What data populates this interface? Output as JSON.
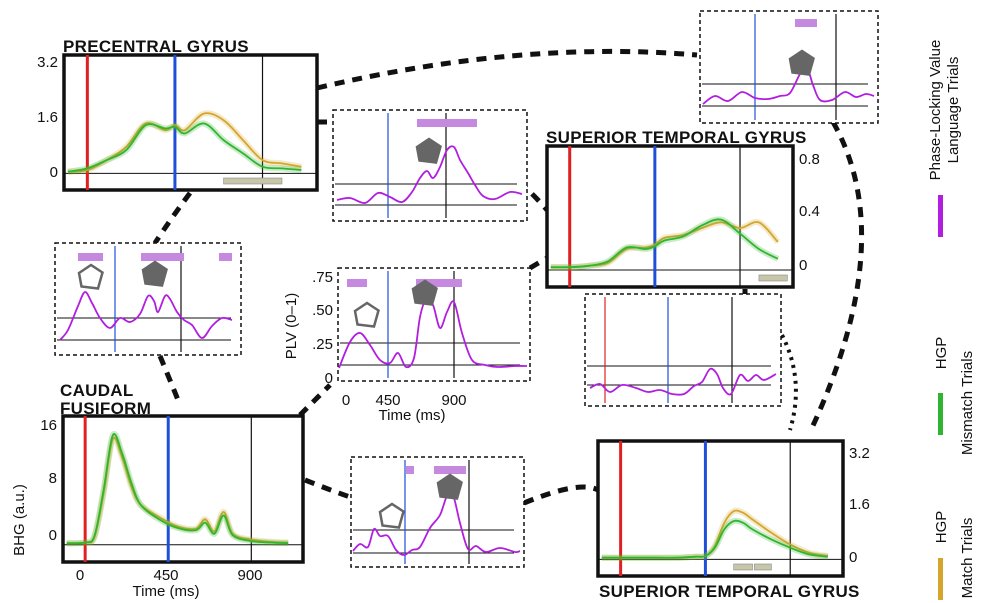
{
  "colors": {
    "match": "#d4a72c",
    "mismatch": "#2fb52f",
    "plv": "#b11ee0",
    "plv_bar": "#c58ae0",
    "sig_bar": "#c8c6a9",
    "marker_red": "#e02020",
    "marker_blue": "#1f4fd8",
    "arrow_fill": "#666666"
  },
  "labels": {
    "precentral": "PRECENTRAL GYRUS",
    "stg_upper": "SUPERIOR TEMPORAL GYRUS",
    "caudal": "CAUDAL",
    "fusiform": "FUSIFORM",
    "stg_lower": "SUPERIOR TEMPORAL GYRUS",
    "bhg_axis": "BHG (a.u.)",
    "plv_axis": "PLV (0–1)",
    "time_axis": "Time (ms)"
  },
  "legend": {
    "plv_line1": "Phase-Locking Value",
    "plv_line2": "Language Trials",
    "mismatch_line1": "HGP",
    "mismatch_line2": "Mismatch Trials",
    "match_line1": "HGP",
    "match_line2": "Match Trials"
  },
  "chart_data": [
    {
      "id": "precentral",
      "type": "line",
      "ylabel": "",
      "ylim": [
        -0.2,
        3.2
      ],
      "yticks": [
        "3.2",
        "1.6",
        "0"
      ],
      "x": [
        -100,
        0,
        100,
        200,
        300,
        400,
        450,
        500,
        600,
        700,
        800,
        900,
        1000,
        1100
      ],
      "series": [
        {
          "name": "",
          "key": "match",
          "values": [
            0.05,
            0.1,
            0.4,
            0.8,
            1.5,
            1.3,
            1.45,
            1.3,
            1.8,
            1.6,
            1.0,
            0.4,
            0.3,
            0.2
          ]
        },
        {
          "name": "",
          "key": "mismatch",
          "values": [
            0.05,
            0.15,
            0.4,
            0.7,
            1.45,
            1.35,
            1.4,
            1.2,
            1.5,
            1.0,
            0.6,
            0.2,
            0.15,
            0.1
          ]
        }
      ],
      "sig_bars": [
        [
          700,
          1000
        ]
      ]
    },
    {
      "id": "stg_upper",
      "type": "line",
      "ylim": [
        -0.05,
        0.8
      ],
      "yticks": [
        "0.8",
        "0.4",
        "0"
      ],
      "x": [
        -100,
        0,
        100,
        200,
        300,
        400,
        450,
        500,
        600,
        700,
        800,
        900,
        1000,
        1100
      ],
      "series": [
        {
          "name": "",
          "key": "match",
          "values": [
            0.02,
            0.02,
            0.03,
            0.05,
            0.15,
            0.16,
            0.18,
            0.23,
            0.25,
            0.3,
            0.34,
            0.3,
            0.34,
            0.2
          ]
        },
        {
          "name": "",
          "key": "mismatch",
          "values": [
            0.02,
            0.02,
            0.03,
            0.06,
            0.16,
            0.15,
            0.17,
            0.21,
            0.24,
            0.32,
            0.36,
            0.26,
            0.15,
            0.08
          ]
        }
      ],
      "sig_bars": [
        [
          1000,
          1150
        ]
      ]
    },
    {
      "id": "caudal_fusiform",
      "type": "line",
      "ylabel": "BHG (a.u.)",
      "xlabel": "Time (ms)",
      "ylim": [
        -1,
        16
      ],
      "xticks": [
        "0",
        "450",
        "900"
      ],
      "yticks": [
        "16",
        "8",
        "0"
      ],
      "x": [
        -100,
        0,
        50,
        100,
        150,
        200,
        250,
        300,
        400,
        500,
        600,
        650,
        700,
        750,
        800,
        900,
        1000,
        1100
      ],
      "series": [
        {
          "name": "",
          "key": "match",
          "values": [
            0.2,
            0.3,
            1.0,
            7.0,
            14.5,
            12.0,
            8.0,
            5.5,
            3.8,
            2.5,
            2.2,
            3.5,
            1.8,
            4.5,
            1.5,
            0.7,
            0.4,
            0.3
          ]
        },
        {
          "name": "",
          "key": "mismatch",
          "values": [
            0.2,
            0.3,
            1.2,
            7.5,
            15.0,
            12.5,
            8.5,
            5.5,
            3.5,
            2.3,
            2.0,
            3.0,
            1.5,
            4.0,
            1.3,
            0.5,
            0.3,
            0.2
          ]
        }
      ],
      "sig_bars": []
    },
    {
      "id": "stg_lower",
      "type": "line",
      "ylim": [
        -0.2,
        3.2
      ],
      "yticks": [
        "3.2",
        "1.6",
        "0"
      ],
      "x": [
        -100,
        0,
        100,
        200,
        300,
        400,
        450,
        500,
        550,
        600,
        650,
        700,
        800,
        900,
        1000,
        1100
      ],
      "series": [
        {
          "name": "",
          "key": "match",
          "values": [
            0.05,
            0.05,
            0.05,
            0.05,
            0.05,
            0.08,
            0.1,
            0.4,
            1.1,
            1.45,
            1.4,
            1.2,
            0.8,
            0.45,
            0.2,
            0.1
          ]
        },
        {
          "name": "",
          "key": "mismatch",
          "values": [
            0.05,
            0.05,
            0.05,
            0.05,
            0.05,
            0.08,
            0.1,
            0.35,
            0.9,
            1.15,
            1.1,
            0.9,
            0.6,
            0.35,
            0.15,
            0.08
          ]
        }
      ],
      "sig_bars": [
        [
          600,
          700
        ],
        [
          710,
          800
        ]
      ]
    },
    {
      "id": "plv_center",
      "type": "line",
      "ylabel": "PLV (0–1)",
      "xlabel": "Time (ms)",
      "ylim": [
        0,
        0.75
      ],
      "xticks": [
        "0",
        "450",
        "900"
      ],
      "yticks": [
        ".75",
        ".50",
        ".25",
        "0"
      ],
      "x": [
        0,
        100,
        150,
        250,
        350,
        450,
        550,
        600,
        650,
        700,
        750,
        800,
        850,
        900,
        1000,
        1100
      ],
      "series": [
        {
          "name": "",
          "key": "plv",
          "values": [
            0.1,
            0.3,
            0.33,
            0.2,
            0.08,
            0.17,
            0.08,
            0.2,
            0.52,
            0.48,
            0.3,
            0.35,
            0.5,
            0.3,
            0.08,
            0.1
          ]
        }
      ]
    }
  ]
}
